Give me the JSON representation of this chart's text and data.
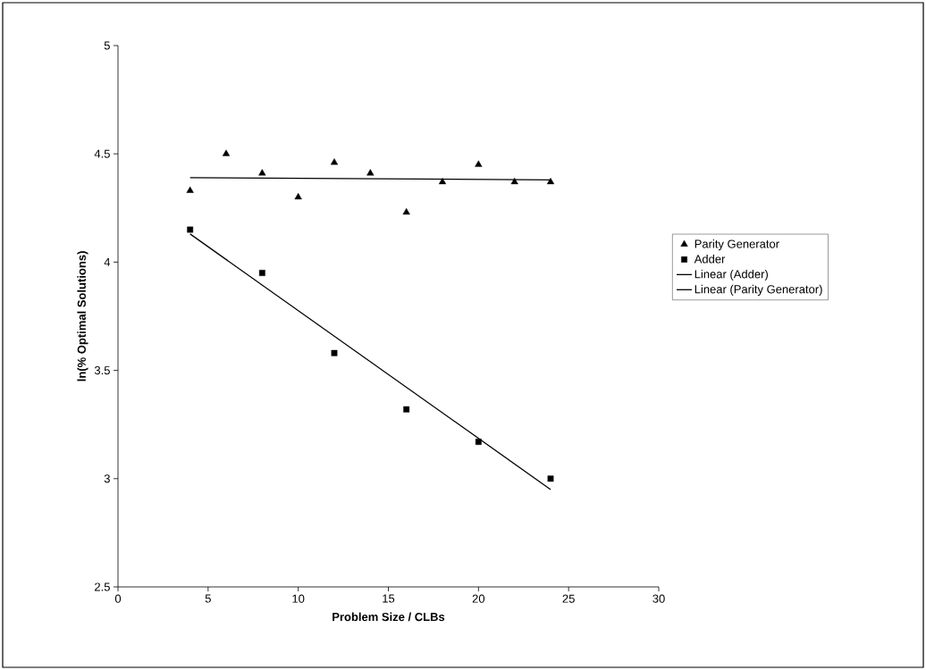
{
  "chart_data": {
    "type": "scatter",
    "xlabel": "Problem Size / CLBs",
    "ylabel": "ln(% Optimal Solutions)",
    "xlim": [
      0,
      30
    ],
    "xticks": [
      0,
      5,
      10,
      15,
      20,
      25,
      30
    ],
    "ylim": [
      2.5,
      5
    ],
    "yticks": [
      2.5,
      3,
      3.5,
      4,
      4.5,
      5
    ],
    "grid": false,
    "legend": "right",
    "series": [
      {
        "name": "Parity Generator",
        "marker": "triangle",
        "color": "#000000",
        "x": [
          4,
          6,
          8,
          10,
          12,
          14,
          16,
          18,
          20,
          22,
          24
        ],
        "values": [
          4.33,
          4.5,
          4.41,
          4.3,
          4.46,
          4.41,
          4.23,
          4.37,
          4.45,
          4.37,
          4.37
        ]
      },
      {
        "name": "Adder",
        "marker": "square",
        "color": "#000000",
        "x": [
          4,
          8,
          12,
          16,
          20,
          24
        ],
        "values": [
          4.15,
          3.95,
          3.58,
          3.32,
          3.17,
          3.0
        ]
      },
      {
        "name": "Linear (Adder)",
        "type": "line",
        "marker": "none",
        "line_style": "solid",
        "color": "#000000",
        "x": [
          4,
          24
        ],
        "values": [
          4.13,
          2.95
        ]
      },
      {
        "name": "Linear (Parity Generator)",
        "type": "line",
        "marker": "none",
        "line_style": "solid",
        "color": "#000000",
        "x": [
          4,
          24
        ],
        "values": [
          4.39,
          4.38
        ]
      }
    ]
  }
}
